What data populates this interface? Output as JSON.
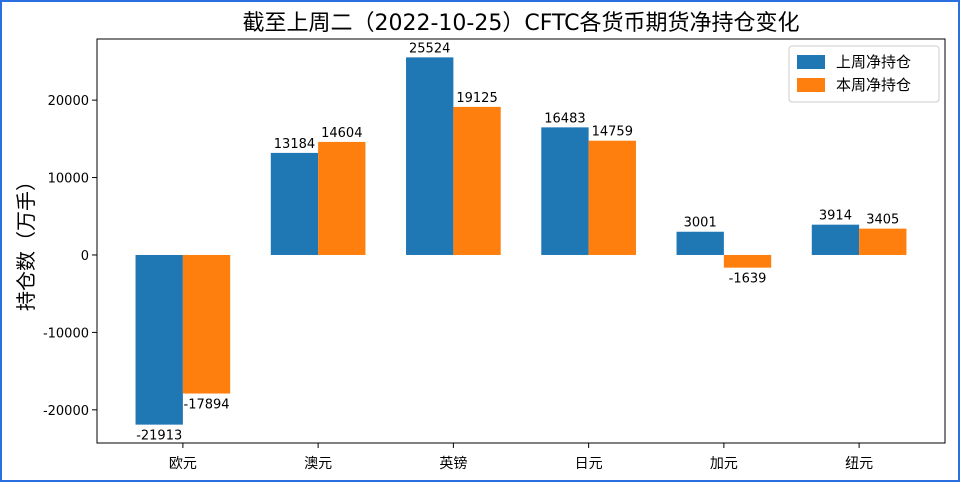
{
  "chart_data": {
    "type": "bar",
    "title": "截至上周二（2022-10-25）CFTC各货币期货净持仓变化",
    "xlabel": "",
    "ylabel": "持仓数（万手）",
    "categories": [
      "欧元",
      "澳元",
      "英镑",
      "日元",
      "加元",
      "纽元"
    ],
    "series": [
      {
        "name": "上周净持仓",
        "color": "#1f77b4",
        "values": [
          -21913,
          13184,
          25524,
          16483,
          3001,
          3914
        ]
      },
      {
        "name": "本周净持仓",
        "color": "#ff7f0e",
        "values": [
          -17894,
          14604,
          19125,
          14759,
          -1639,
          3405
        ]
      }
    ],
    "yticks": [
      -20000,
      -10000,
      0,
      10000,
      20000
    ],
    "ytick_labels": [
      "-20000",
      "-10000",
      "0",
      "10000",
      "20000"
    ],
    "ylim": [
      -24284.85,
      27895.85
    ],
    "grid": false,
    "legend_position": "top-right"
  },
  "frame_color": "#2a6ee0"
}
